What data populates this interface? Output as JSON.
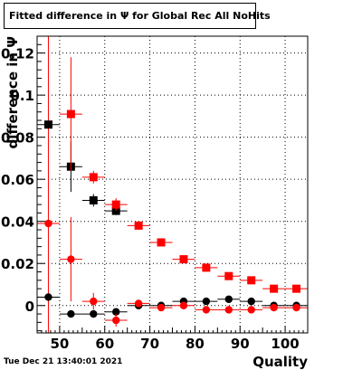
{
  "title": "Fitted difference in Ψ  for Global Rec All NoHits",
  "timestamp": "Tue Dec 21 13:40:01 2021",
  "chart_data": {
    "type": "scatter",
    "title": "Fitted difference in Ψ  for Global Rec All NoHits",
    "xlabel": "Quality",
    "ylabel": "difference in Ψ",
    "xlim": [
      45,
      105
    ],
    "ylim": [
      -0.013,
      0.128
    ],
    "x_ticks": [
      50,
      60,
      70,
      80,
      90,
      100
    ],
    "x_tick_labels": [
      "50",
      "60",
      "70",
      "80",
      "90",
      "100"
    ],
    "y_ticks": [
      0,
      0.02,
      0.04,
      0.06,
      0.08,
      0.1,
      0.12
    ],
    "y_tick_labels": [
      "0",
      "0.02",
      "0.04",
      "0.06",
      "0.08",
      "0.1",
      "0.12"
    ],
    "grid": true,
    "legend": "none",
    "colors": {
      "black": "#000000",
      "red": "#ff0000"
    },
    "series": [
      {
        "marker": "square",
        "color": "#000000",
        "points": [
          {
            "x": 47.5,
            "y": 0.086,
            "xerr": 2.5,
            "yerr": 0.0
          },
          {
            "x": 52.5,
            "y": 0.066,
            "xerr": 2.5,
            "yerr": 0.012
          },
          {
            "x": 57.5,
            "y": 0.05,
            "xerr": 2.5,
            "yerr": 0.003
          },
          {
            "x": 62.5,
            "y": 0.045,
            "xerr": 2.5,
            "yerr": 0.002
          }
        ]
      },
      {
        "marker": "square",
        "color": "#ff0000",
        "points": [
          {
            "x": 52.5,
            "y": 0.091,
            "xerr": 2.5,
            "yerr": 0.027
          },
          {
            "x": 57.5,
            "y": 0.061,
            "xerr": 2.5,
            "yerr": 0.003
          },
          {
            "x": 62.5,
            "y": 0.048,
            "xerr": 2.5,
            "yerr": 0.003
          },
          {
            "x": 67.5,
            "y": 0.038,
            "xerr": 2.5,
            "yerr": 0.002
          },
          {
            "x": 72.5,
            "y": 0.03,
            "xerr": 2.5,
            "yerr": 0.001
          },
          {
            "x": 77.5,
            "y": 0.022,
            "xerr": 2.5,
            "yerr": 0.001
          },
          {
            "x": 82.5,
            "y": 0.018,
            "xerr": 2.5,
            "yerr": 0.001
          },
          {
            "x": 87.5,
            "y": 0.014,
            "xerr": 2.5,
            "yerr": 0.001
          },
          {
            "x": 92.5,
            "y": 0.012,
            "xerr": 2.5,
            "yerr": 0.001
          },
          {
            "x": 97.5,
            "y": 0.008,
            "xerr": 2.5,
            "yerr": 0.001
          },
          {
            "x": 102.5,
            "y": 0.008,
            "xerr": 2.5,
            "yerr": 0.001
          }
        ]
      },
      {
        "marker": "circle",
        "color": "#000000",
        "points": [
          {
            "x": 47.5,
            "y": 0.004,
            "xerr": 2.5,
            "yerr": 0.0
          },
          {
            "x": 52.5,
            "y": -0.004,
            "xerr": 2.5,
            "yerr": 0.0
          },
          {
            "x": 57.5,
            "y": -0.004,
            "xerr": 2.5,
            "yerr": 0.0
          },
          {
            "x": 62.5,
            "y": -0.003,
            "xerr": 2.5,
            "yerr": 0.0
          },
          {
            "x": 67.5,
            "y": 0.0,
            "xerr": 2.5,
            "yerr": 0.0
          },
          {
            "x": 72.5,
            "y": 0.0,
            "xerr": 2.5,
            "yerr": 0.0
          },
          {
            "x": 77.5,
            "y": 0.002,
            "xerr": 2.5,
            "yerr": 0.0
          },
          {
            "x": 82.5,
            "y": 0.002,
            "xerr": 2.5,
            "yerr": 0.0
          },
          {
            "x": 87.5,
            "y": 0.003,
            "xerr": 2.5,
            "yerr": 0.0
          },
          {
            "x": 92.5,
            "y": 0.002,
            "xerr": 2.5,
            "yerr": 0.0
          },
          {
            "x": 97.5,
            "y": 0.0,
            "xerr": 2.5,
            "yerr": 0.0
          },
          {
            "x": 102.5,
            "y": 0.0,
            "xerr": 2.5,
            "yerr": 0.0
          }
        ]
      },
      {
        "marker": "circle",
        "color": "#ff0000",
        "points": [
          {
            "x": 47.5,
            "y": 0.039,
            "xerr": 2.5,
            "yerr": 0.0
          },
          {
            "x": 52.5,
            "y": 0.022,
            "xerr": 2.5,
            "yerr": 0.02
          },
          {
            "x": 57.5,
            "y": 0.002,
            "xerr": 2.5,
            "yerr": 0.004
          },
          {
            "x": 62.5,
            "y": -0.007,
            "xerr": 2.5,
            "yerr": 0.003
          },
          {
            "x": 67.5,
            "y": 0.001,
            "xerr": 2.5,
            "yerr": 0.001
          },
          {
            "x": 72.5,
            "y": -0.001,
            "xerr": 2.5,
            "yerr": 0.0
          },
          {
            "x": 77.5,
            "y": 0.0,
            "xerr": 2.5,
            "yerr": 0.0
          },
          {
            "x": 82.5,
            "y": -0.002,
            "xerr": 2.5,
            "yerr": 0.0
          },
          {
            "x": 87.5,
            "y": -0.002,
            "xerr": 2.5,
            "yerr": 0.0
          },
          {
            "x": 92.5,
            "y": -0.002,
            "xerr": 2.5,
            "yerr": 0.0
          },
          {
            "x": 97.5,
            "y": -0.001,
            "xerr": 2.5,
            "yerr": 0.0
          },
          {
            "x": 102.5,
            "y": -0.001,
            "xerr": 2.5,
            "yerr": 0.0
          }
        ]
      }
    ],
    "vertical_line": {
      "x": 47.5,
      "y_from": -0.013,
      "y_to": 0.128,
      "color": "#ff0000"
    }
  }
}
